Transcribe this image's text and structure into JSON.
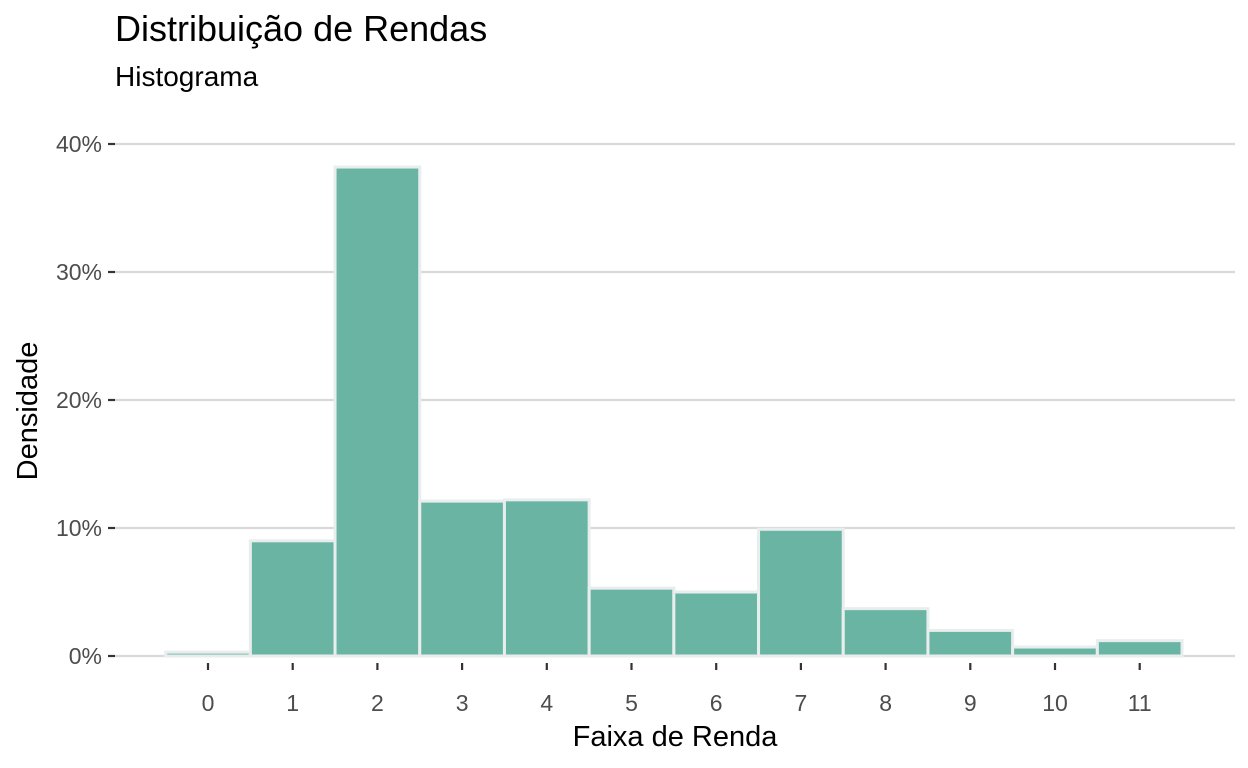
{
  "chart_data": {
    "type": "bar",
    "title": "Distribuição de Rendas",
    "subtitle": "Histograma",
    "xlabel": "Faixa de Renda",
    "ylabel": "Densidade",
    "categories": [
      "0",
      "1",
      "2",
      "3",
      "4",
      "5",
      "6",
      "7",
      "8",
      "9",
      "10",
      "11"
    ],
    "values": [
      0.003,
      0.09,
      0.382,
      0.121,
      0.122,
      0.053,
      0.05,
      0.099,
      0.037,
      0.02,
      0.007,
      0.012
    ],
    "ylim": [
      0,
      0.4
    ],
    "yticks": [
      0,
      0.1,
      0.2,
      0.3,
      0.4
    ],
    "ytick_labels": [
      "0%",
      "10%",
      "20%",
      "30%",
      "40%"
    ],
    "bar_color": "#6ab4a4",
    "bar_edge_color": "#e8eeee",
    "grid": true,
    "legend": "none"
  }
}
